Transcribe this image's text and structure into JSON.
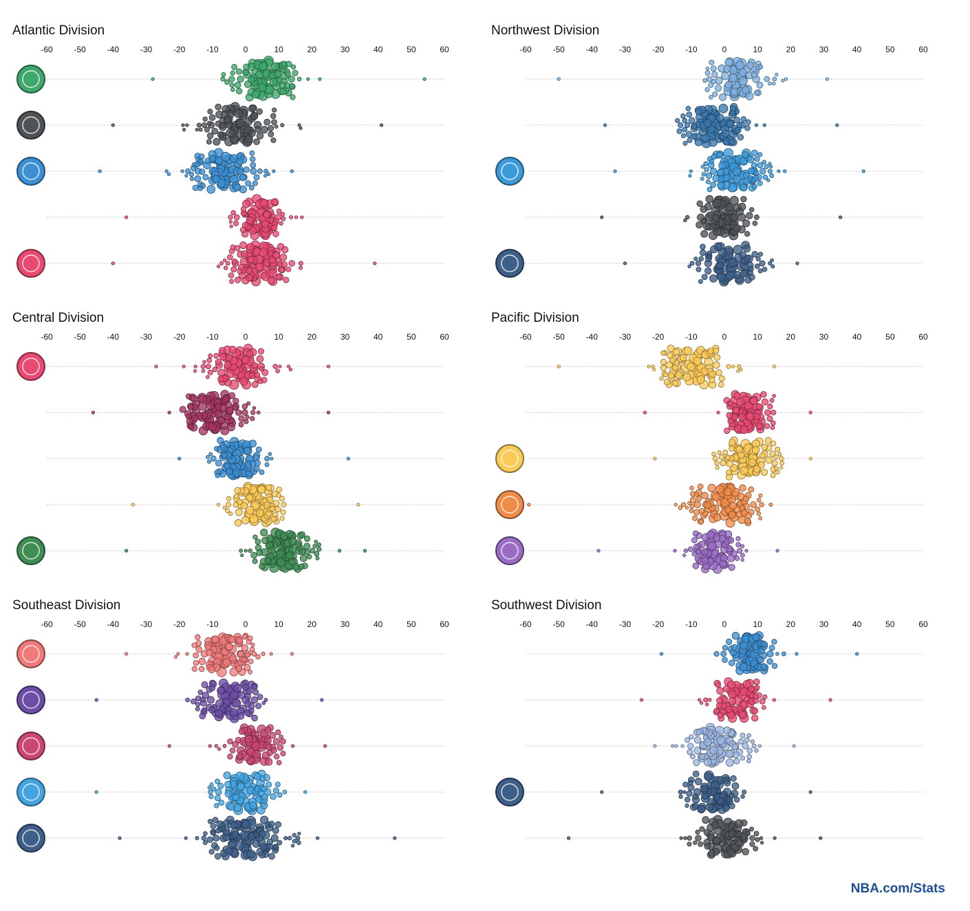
{
  "credit": "NBA.com/Stats",
  "chart_data": {
    "type": "scatter",
    "x_ticks": [
      -60,
      -50,
      -40,
      -30,
      -20,
      -10,
      0,
      10,
      20,
      30,
      40,
      50,
      60
    ],
    "xlim": [
      -60,
      60
    ],
    "grid": false,
    "divisions": [
      {
        "title": "Atlantic Division",
        "teams": [
          {
            "logo": "celtics-logo",
            "color": "#3fa66c",
            "center": 6,
            "spread": 14,
            "min": -28,
            "max": 54,
            "n": 95,
            "seed": 11
          },
          {
            "logo": "nets-logo",
            "color": "#4f5356",
            "center": -2,
            "spread": 14,
            "min": -40,
            "max": 41,
            "n": 90,
            "seed": 12
          },
          {
            "logo": "knicks-logo",
            "color": "#3d8fd2",
            "center": -6,
            "spread": 13,
            "min": -44,
            "max": 14,
            "n": 95,
            "seed": 13
          },
          {
            "logo": "",
            "color": "#e84a73",
            "center": 4,
            "spread": 9,
            "min": -36,
            "max": 17,
            "n": 85,
            "seed": 14
          },
          {
            "logo": "raptors-logo",
            "color": "#e84a73",
            "center": 5,
            "spread": 13,
            "min": -40,
            "max": 39,
            "n": 100,
            "seed": 15
          }
        ]
      },
      {
        "title": "Northwest Division",
        "teams": [
          {
            "logo": "",
            "color": "#7fb0e0",
            "center": 4,
            "spread": 11,
            "min": -50,
            "max": 31,
            "n": 85,
            "seed": 21
          },
          {
            "logo": "",
            "color": "#3b78ad",
            "center": -3,
            "spread": 13,
            "min": -36,
            "max": 34,
            "n": 110,
            "seed": 22
          },
          {
            "logo": "thunder-logo",
            "color": "#3d9ad8",
            "center": 3,
            "spread": 12,
            "min": -33,
            "max": 42,
            "n": 100,
            "seed": 23
          },
          {
            "logo": "",
            "color": "#4f5356",
            "center": 0,
            "spread": 13,
            "min": -37,
            "max": 35,
            "n": 80,
            "seed": 24
          },
          {
            "logo": "jazz-logo",
            "color": "#3e5f88",
            "center": 2,
            "spread": 13,
            "min": -30,
            "max": 22,
            "n": 80,
            "seed": 25
          }
        ]
      },
      {
        "title": "Central Division",
        "teams": [
          {
            "logo": "bulls-logo",
            "color": "#e84a73",
            "center": -2,
            "spread": 12,
            "min": -27,
            "max": 25,
            "n": 90,
            "seed": 31
          },
          {
            "logo": "",
            "color": "#a3365f",
            "center": -10,
            "spread": 14,
            "min": -46,
            "max": 25,
            "n": 90,
            "seed": 32
          },
          {
            "logo": "",
            "color": "#3d8fd2",
            "center": -2,
            "spread": 10,
            "min": -20,
            "max": 31,
            "n": 90,
            "seed": 33
          },
          {
            "logo": "",
            "color": "#fbcb5a",
            "center": 3,
            "spread": 10,
            "min": -34,
            "max": 34,
            "n": 95,
            "seed": 34
          },
          {
            "logo": "bucks-logo",
            "color": "#3f8c55",
            "center": 11,
            "spread": 12,
            "min": -36,
            "max": 36,
            "n": 100,
            "seed": 35
          }
        ]
      },
      {
        "title": "Pacific Division",
        "teams": [
          {
            "logo": "",
            "color": "#fbcb5a",
            "center": -9,
            "spread": 13,
            "min": -50,
            "max": 15,
            "n": 95,
            "seed": 41
          },
          {
            "logo": "",
            "color": "#e84a73",
            "center": 7,
            "spread": 10,
            "min": -24,
            "max": 26,
            "n": 90,
            "seed": 42
          },
          {
            "logo": "lakers-logo",
            "color": "#fbcb5a",
            "center": 7,
            "spread": 11,
            "min": -21,
            "max": 26,
            "n": 95,
            "seed": 43
          },
          {
            "logo": "suns-logo",
            "color": "#f08c4a",
            "center": 0,
            "spread": 13,
            "min": -59,
            "max": 14,
            "n": 95,
            "seed": 44
          },
          {
            "logo": "kings-logo",
            "color": "#9a6cc5",
            "center": -3,
            "spread": 10,
            "min": -38,
            "max": 16,
            "n": 80,
            "seed": 45
          }
        ]
      },
      {
        "title": "Southeast Division",
        "teams": [
          {
            "logo": "hawks-logo",
            "color": "#f07a7a",
            "center": -7,
            "spread": 12,
            "min": -36,
            "max": 14,
            "n": 100,
            "seed": 51
          },
          {
            "logo": "hornets-logo",
            "color": "#6b4ea5",
            "center": -5,
            "spread": 13,
            "min": -45,
            "max": 23,
            "n": 85,
            "seed": 52
          },
          {
            "logo": "heat-logo",
            "color": "#c94772",
            "center": 3,
            "spread": 11,
            "min": -23,
            "max": 24,
            "n": 75,
            "seed": 53
          },
          {
            "logo": "magic-logo",
            "color": "#43a4e0",
            "center": 0,
            "spread": 12,
            "min": -45,
            "max": 18,
            "n": 85,
            "seed": 54
          },
          {
            "logo": "wizards-logo",
            "color": "#3e5f88",
            "center": 0,
            "spread": 16,
            "min": -38,
            "max": 45,
            "n": 115,
            "seed": 55
          }
        ]
      },
      {
        "title": "Southwest Division",
        "teams": [
          {
            "logo": "",
            "color": "#3d8fd2",
            "center": 7,
            "spread": 11,
            "min": -19,
            "max": 40,
            "n": 90,
            "seed": 61
          },
          {
            "logo": "",
            "color": "#e84a73",
            "center": 4,
            "spread": 10,
            "min": -25,
            "max": 32,
            "n": 80,
            "seed": 62
          },
          {
            "logo": "",
            "color": "#9cb6e0",
            "center": -2,
            "spread": 12,
            "min": -21,
            "max": 21,
            "n": 90,
            "seed": 63
          },
          {
            "logo": "pelicans-logo",
            "color": "#3e5f88",
            "center": -3,
            "spread": 11,
            "min": -37,
            "max": 26,
            "n": 80,
            "seed": 64
          },
          {
            "logo": "",
            "color": "#4f5356",
            "center": 0,
            "spread": 12,
            "min": -47,
            "max": 29,
            "n": 85,
            "seed": 65
          }
        ]
      }
    ]
  }
}
